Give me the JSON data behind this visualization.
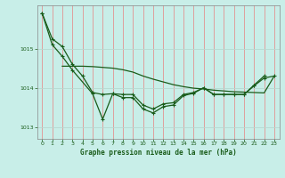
{
  "title": "Graphe pression niveau de la mer (hPa)",
  "background_color": "#c8eee8",
  "vgrid_color": "#e88080",
  "hgrid_color": "#b8d8d0",
  "line_color": "#1a5c1a",
  "xlim": [
    -0.5,
    23.5
  ],
  "ylim": [
    1012.7,
    1016.1
  ],
  "yticks": [
    1013,
    1014,
    1015
  ],
  "xticks": [
    0,
    1,
    2,
    3,
    4,
    5,
    6,
    7,
    8,
    9,
    10,
    11,
    12,
    13,
    14,
    15,
    16,
    17,
    18,
    19,
    20,
    21,
    22,
    23
  ],
  "series1_x": [
    0,
    1,
    2,
    3,
    4,
    5,
    6,
    7,
    8,
    9,
    10,
    11,
    12,
    13,
    14,
    15,
    16,
    17,
    18,
    19,
    20,
    21,
    22
  ],
  "series1_y": [
    1015.9,
    1015.25,
    1015.05,
    1014.6,
    1014.3,
    1013.88,
    1013.83,
    1013.85,
    1013.83,
    1013.83,
    1013.56,
    1013.46,
    1013.59,
    1013.62,
    1013.83,
    1013.88,
    1014.0,
    1013.83,
    1013.83,
    1013.83,
    1013.83,
    1014.07,
    1014.3
  ],
  "series2_x": [
    0,
    1,
    2,
    3,
    5,
    6,
    7,
    8,
    9,
    10,
    11,
    12,
    13,
    14,
    15,
    16,
    17,
    18,
    19,
    20,
    21,
    22,
    23
  ],
  "series2_y": [
    1015.9,
    1015.1,
    1014.8,
    1014.45,
    1013.85,
    1013.2,
    1013.85,
    1013.75,
    1013.75,
    1013.46,
    1013.36,
    1013.52,
    1013.56,
    1013.8,
    1013.86,
    1014.0,
    1013.83,
    1013.83,
    1013.83,
    1013.83,
    1014.05,
    1014.25,
    1014.3
  ],
  "series3_x": [
    2,
    3,
    4,
    5,
    6,
    7,
    8,
    9,
    10,
    11,
    12,
    13,
    14,
    15,
    16,
    17,
    18,
    19,
    20,
    21,
    22,
    23
  ],
  "series3_y": [
    1014.55,
    1014.55,
    1014.55,
    1014.54,
    1014.52,
    1014.5,
    1014.46,
    1014.4,
    1014.3,
    1014.22,
    1014.15,
    1014.08,
    1014.03,
    1013.99,
    1013.97,
    1013.94,
    1013.92,
    1013.9,
    1013.89,
    1013.88,
    1013.87,
    1014.3
  ]
}
